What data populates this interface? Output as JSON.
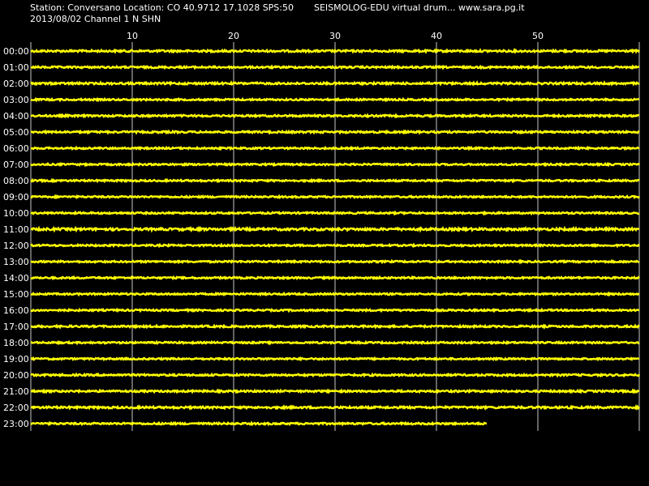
{
  "header": {
    "station_line": "Station: Conversano Location: CO 40.9712 17.1028 SPS:50",
    "date_line": "2013/08/02  Channel 1 N SHN",
    "brand_line": "SEISMOLOG-EDU virtual drum... www.sara.pg.it"
  },
  "colors": {
    "background": "#000000",
    "trace": "#ffff00",
    "grid": "#c8c8c8",
    "text": "#ffffff"
  },
  "chart_data": {
    "type": "line",
    "title": "",
    "xlabel": "",
    "ylabel": "",
    "x_unit": "minutes",
    "xlim": [
      0,
      60
    ],
    "x_ticks": [
      10,
      20,
      30,
      40,
      50
    ],
    "grid": true,
    "row_labels": [
      "00:00",
      "01:00",
      "02:00",
      "03:00",
      "04:00",
      "05:00",
      "06:00",
      "07:00",
      "08:00",
      "09:00",
      "10:00",
      "11:00",
      "12:00",
      "13:00",
      "14:00",
      "15:00",
      "16:00",
      "17:00",
      "18:00",
      "19:00",
      "20:00",
      "21:00",
      "22:00",
      "23:00"
    ],
    "rows": [
      {
        "hour": "00:00",
        "end_minute": 60,
        "noise": 1.2
      },
      {
        "hour": "01:00",
        "end_minute": 60,
        "noise": 1.1
      },
      {
        "hour": "02:00",
        "end_minute": 60,
        "noise": 1.2
      },
      {
        "hour": "03:00",
        "end_minute": 60,
        "noise": 1.0
      },
      {
        "hour": "04:00",
        "end_minute": 60,
        "noise": 1.1
      },
      {
        "hour": "05:00",
        "end_minute": 60,
        "noise": 1.1
      },
      {
        "hour": "06:00",
        "end_minute": 60,
        "noise": 1.0
      },
      {
        "hour": "07:00",
        "end_minute": 60,
        "noise": 1.0
      },
      {
        "hour": "08:00",
        "end_minute": 60,
        "noise": 1.0
      },
      {
        "hour": "09:00",
        "end_minute": 60,
        "noise": 1.0
      },
      {
        "hour": "10:00",
        "end_minute": 60,
        "noise": 1.0
      },
      {
        "hour": "11:00",
        "end_minute": 60,
        "noise": 1.4
      },
      {
        "hour": "12:00",
        "end_minute": 60,
        "noise": 1.0
      },
      {
        "hour": "13:00",
        "end_minute": 60,
        "noise": 1.0
      },
      {
        "hour": "14:00",
        "end_minute": 60,
        "noise": 1.0
      },
      {
        "hour": "15:00",
        "end_minute": 60,
        "noise": 1.0
      },
      {
        "hour": "16:00",
        "end_minute": 60,
        "noise": 1.0
      },
      {
        "hour": "17:00",
        "end_minute": 60,
        "noise": 1.1
      },
      {
        "hour": "18:00",
        "end_minute": 60,
        "noise": 1.0
      },
      {
        "hour": "19:00",
        "end_minute": 60,
        "noise": 1.0
      },
      {
        "hour": "20:00",
        "end_minute": 60,
        "noise": 1.1
      },
      {
        "hour": "21:00",
        "end_minute": 60,
        "noise": 1.1
      },
      {
        "hour": "22:00",
        "end_minute": 60,
        "noise": 1.2
      },
      {
        "hour": "23:00",
        "end_minute": 45,
        "noise": 1.1
      }
    ]
  }
}
